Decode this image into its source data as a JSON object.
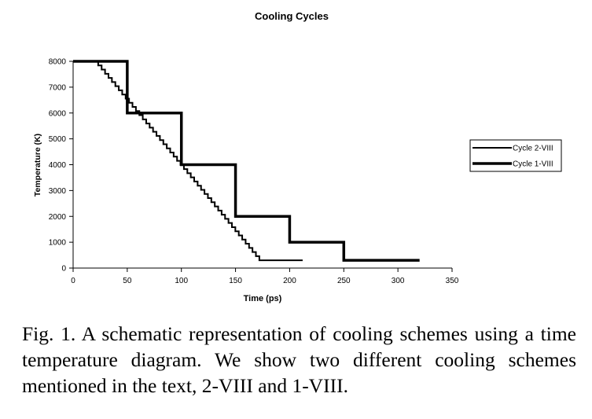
{
  "chart_data": {
    "type": "line",
    "title": "Cooling Cycles",
    "xlabel": "Time (ps)",
    "ylabel": "Temperature (K)",
    "xlim": [
      0,
      350
    ],
    "ylim": [
      0,
      8000
    ],
    "xticks": [
      0,
      50,
      100,
      150,
      200,
      250,
      300,
      350
    ],
    "yticks": [
      0,
      1000,
      2000,
      3000,
      4000,
      5000,
      6000,
      7000,
      8000
    ],
    "grid": false,
    "legend_position": "right",
    "series": [
      {
        "name": "Cycle 2-VIII",
        "style": "thin",
        "x": [
          0,
          20,
          172,
          212
        ],
        "y": [
          8000,
          8000,
          300,
          300
        ]
      },
      {
        "name": "Cycle 1-VIII",
        "style": "thick",
        "x": [
          0,
          50,
          50,
          100,
          100,
          150,
          150,
          200,
          200,
          250,
          250,
          320
        ],
        "y": [
          8000,
          8000,
          6000,
          6000,
          4000,
          4000,
          2000,
          2000,
          1000,
          1000,
          300,
          300
        ]
      }
    ]
  },
  "caption": {
    "text": "Fig. 1. A schematic representation of cooling schemes using a time temperature diagram. We show two different cooling schemes mentioned in the text, 2-VIII and 1-VIII."
  },
  "colors": {
    "line": "#000000",
    "background": "#ffffff"
  }
}
